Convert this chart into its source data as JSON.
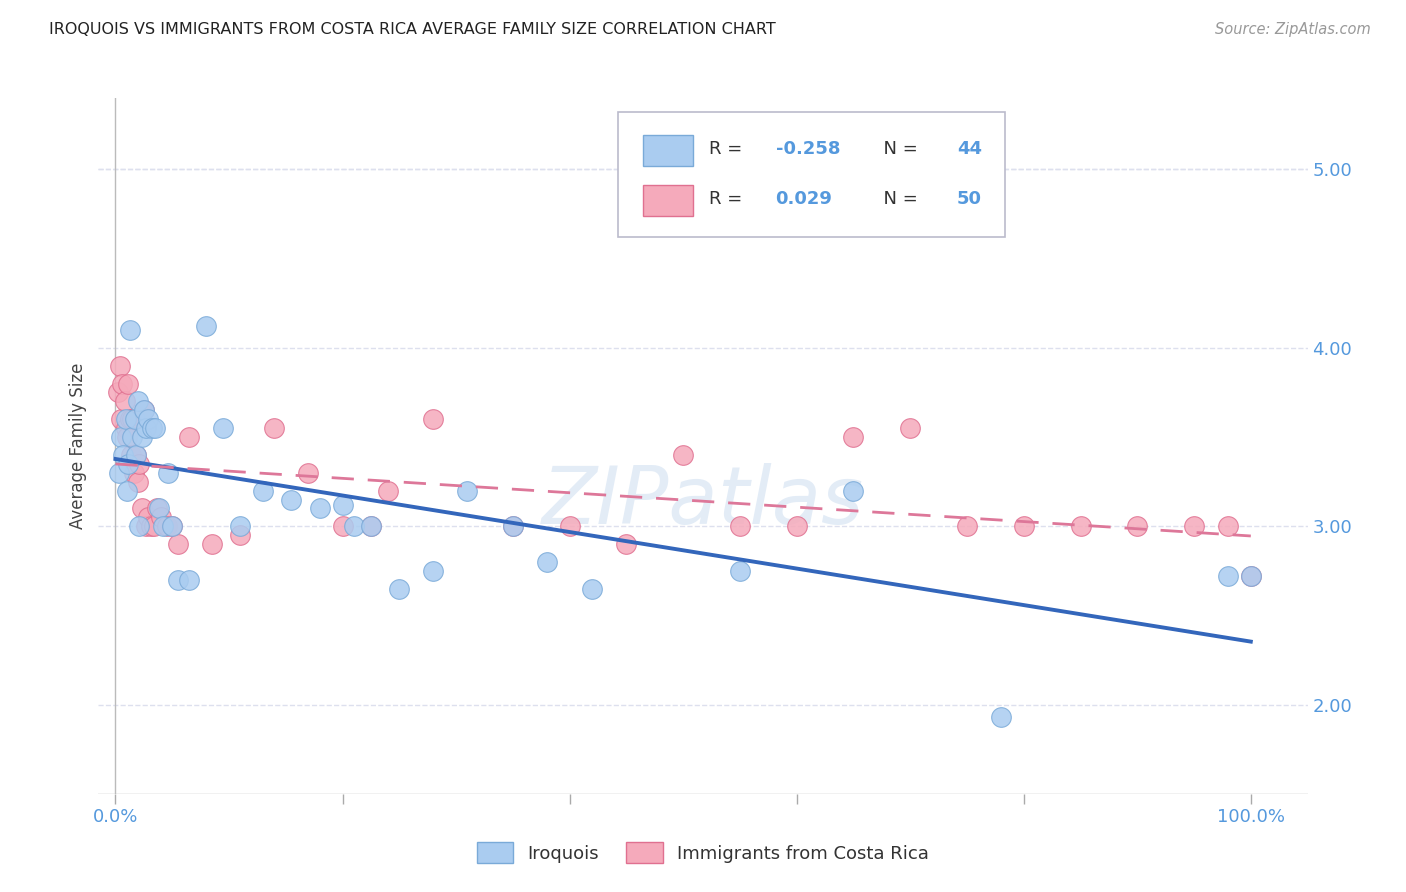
{
  "title": "IROQUOIS VS IMMIGRANTS FROM COSTA RICA AVERAGE FAMILY SIZE CORRELATION CHART",
  "source": "Source: ZipAtlas.com",
  "ylabel": "Average Family Size",
  "ylim": [
    1.5,
    5.4
  ],
  "yticks": [
    2.0,
    3.0,
    4.0,
    5.0
  ],
  "background_color": "#ffffff",
  "grid_color": "#dde0ee",
  "watermark": "ZIPatlas",
  "iroquois_color": "#aaccf0",
  "costa_rica_color": "#f5aabb",
  "iroquois_edge_color": "#7aaad8",
  "costa_rica_edge_color": "#e07090",
  "iroquois_line_color": "#3366bb",
  "costa_rica_line_color": "#dd7799",
  "title_color": "#222222",
  "source_color": "#999999",
  "tick_color": "#5599dd",
  "label_color": "#444444",
  "iroquois_x": [
    0.3,
    0.5,
    0.7,
    0.9,
    1.0,
    1.1,
    1.3,
    1.5,
    1.7,
    1.8,
    2.0,
    2.1,
    2.3,
    2.5,
    2.7,
    2.9,
    3.2,
    3.5,
    3.8,
    4.2,
    4.6,
    5.0,
    5.5,
    6.5,
    8.0,
    9.5,
    11.0,
    13.0,
    15.5,
    18.0,
    20.0,
    21.0,
    22.5,
    25.0,
    28.0,
    31.0,
    35.0,
    38.0,
    42.0,
    55.0,
    65.0,
    78.0,
    98.0,
    100.0
  ],
  "iroquois_y": [
    3.3,
    3.5,
    3.4,
    3.6,
    3.2,
    3.35,
    4.1,
    3.5,
    3.6,
    3.4,
    3.7,
    3.0,
    3.5,
    3.65,
    3.55,
    3.6,
    3.55,
    3.55,
    3.1,
    3.0,
    3.3,
    3.0,
    2.7,
    2.7,
    4.12,
    3.55,
    3.0,
    3.2,
    3.15,
    3.1,
    3.12,
    3.0,
    3.0,
    2.65,
    2.75,
    3.2,
    3.0,
    2.8,
    2.65,
    2.75,
    3.2,
    1.93,
    2.72,
    2.72
  ],
  "costa_rica_x": [
    0.2,
    0.4,
    0.5,
    0.6,
    0.8,
    0.9,
    1.0,
    1.1,
    1.3,
    1.4,
    1.5,
    1.6,
    1.8,
    2.0,
    2.1,
    2.3,
    2.5,
    2.7,
    2.9,
    3.1,
    3.4,
    3.7,
    4.0,
    4.5,
    5.0,
    5.5,
    6.5,
    8.5,
    11.0,
    14.0,
    17.0,
    20.0,
    22.5,
    24.0,
    28.0,
    35.0,
    40.0,
    45.0,
    50.0,
    55.0,
    60.0,
    65.0,
    70.0,
    75.0,
    80.0,
    85.0,
    90.0,
    95.0,
    98.0,
    100.0
  ],
  "costa_rica_y": [
    3.75,
    3.9,
    3.6,
    3.8,
    3.7,
    3.55,
    3.5,
    3.8,
    3.6,
    3.4,
    3.6,
    3.3,
    3.4,
    3.25,
    3.35,
    3.1,
    3.65,
    3.0,
    3.05,
    3.0,
    3.0,
    3.1,
    3.05,
    3.0,
    3.0,
    2.9,
    3.5,
    2.9,
    2.95,
    3.55,
    3.3,
    3.0,
    3.0,
    3.2,
    3.6,
    3.0,
    3.0,
    2.9,
    3.4,
    3.0,
    3.0,
    3.5,
    3.55,
    3.0,
    3.0,
    3.0,
    3.0,
    3.0,
    3.0,
    2.72
  ]
}
